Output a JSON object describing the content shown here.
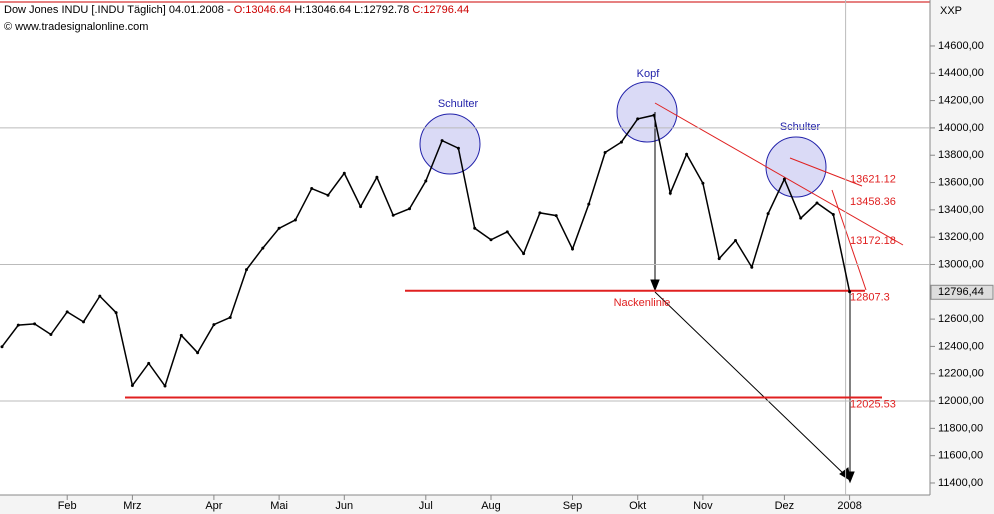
{
  "header": {
    "instrument": "Dow Jones INDU [.INDU Täglich] 04.01.2008 -",
    "open": "O:13046.64",
    "high_low": "H:13046.64 L:12792.78",
    "close": "C:12796.44",
    "source": "© www.tradesignalonline.com"
  },
  "chart_data": {
    "type": "line",
    "axis_label": "XXP",
    "color": "#000000",
    "categories": [
      null,
      null,
      null,
      null,
      "Feb",
      null,
      null,
      null,
      "Mrz",
      null,
      null,
      null,
      null,
      "Apr",
      null,
      null,
      null,
      "Mai",
      null,
      null,
      null,
      "Jun",
      null,
      null,
      null,
      null,
      "Jul",
      null,
      null,
      null,
      "Aug",
      null,
      null,
      null,
      null,
      "Sep",
      null,
      null,
      null,
      "Okt",
      null,
      null,
      null,
      "Nov",
      null,
      null,
      null,
      null,
      "Dez",
      null,
      null,
      null,
      "2008"
    ],
    "values": [
      12398,
      12556,
      12565,
      12487,
      12653,
      12580,
      12768,
      12647,
      12114,
      12276,
      12110,
      12481,
      12354,
      12560,
      12612,
      12962,
      13120,
      13265,
      13326,
      13556,
      13507,
      13668,
      13424,
      13639,
      13360,
      13408,
      13611,
      13907,
      13851,
      13265,
      13181,
      13239,
      13079,
      13378,
      13358,
      13113,
      13442,
      13820,
      13896,
      14066,
      14093,
      13522,
      13807,
      13595,
      13043,
      13176,
      12980,
      13372,
      13625,
      13339,
      13450,
      13366,
      12800
    ],
    "ylim": [
      11312,
      14900
    ],
    "yticks": [
      {
        "value": 11400,
        "label": "11400,00"
      },
      {
        "value": 11600,
        "label": "11600,00"
      },
      {
        "value": 11800,
        "label": "11800,00"
      },
      {
        "value": 12000,
        "label": "12000,00"
      },
      {
        "value": 12200,
        "label": "12200,00"
      },
      {
        "value": 12400,
        "label": "12400,00"
      },
      {
        "value": 12600,
        "label": "12600,00"
      },
      {
        "value": 12800,
        "label": "12800,00"
      },
      {
        "value": 13000,
        "label": "13000,00"
      },
      {
        "value": 13200,
        "label": "13200,00"
      },
      {
        "value": 13400,
        "label": "13400,00"
      },
      {
        "value": 13600,
        "label": "13600,00"
      },
      {
        "value": 13800,
        "label": "13800,00"
      },
      {
        "value": 14000,
        "label": "14000,00"
      },
      {
        "value": 14200,
        "label": "14200,00"
      },
      {
        "value": 14400,
        "label": "14400,00"
      },
      {
        "value": 14600,
        "label": "14600,00"
      }
    ],
    "last_price": {
      "value": 12796.44,
      "label": "12796,44"
    },
    "levels": [
      12807.3,
      12025.53
    ],
    "level_labels": [
      13621.12,
      13458.36,
      13172.18
    ],
    "annotations": [
      "Schulter",
      "Kopf",
      "Schulter",
      "Nackenlinie"
    ]
  }
}
